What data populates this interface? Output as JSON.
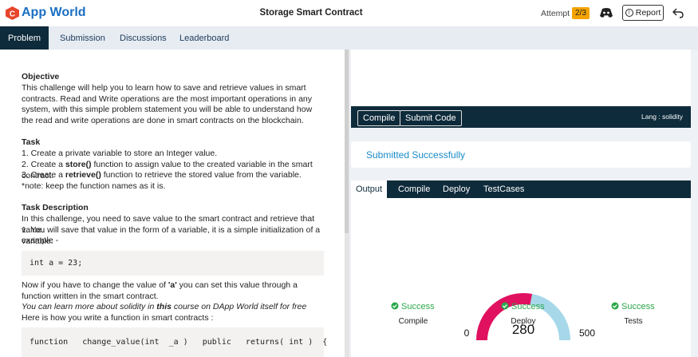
{
  "header": {
    "brand": "App World",
    "title": "Storage Smart Contract",
    "attempt_label": "Attempt :",
    "attempt": "2/3",
    "report": "Report"
  },
  "nav": [
    "Problem",
    "Submission",
    "Discussions",
    "Leaderboard"
  ],
  "problem": {
    "objective_heading": "Objective",
    "objective": "This challenge will help you to learn how to save and retrieve values in smart contracts. Read and Write operations are the most important operations in any system, with this simple problem statement you will be able to understand how the read and write operations are done in smart contracts on the blockchain.",
    "task_heading": "Task",
    "tasks": [
      [
        "1. Create a private variable to store an Integer value."
      ],
      [
        "2. Create a ",
        "store()",
        " function to assign value to the created variable in the smart contract."
      ],
      [
        "3. Create a ",
        "retrieve()",
        " function to retrieve the stored value from the variable."
      ],
      [
        "*note: keep the function names as it is."
      ]
    ],
    "desc_heading": "Task Description",
    "desc": [
      "In this challenge, you need to save value to the smart contract and retrieve that value.",
      "1. You will save that value in the form of a variable, it is a simple initialization of a variable.",
      "example -"
    ],
    "code1": "int a = 23;",
    "change": [
      "Now if you have to change the value of ",
      "'a'",
      " you can set this value through a function written in the smart contract."
    ],
    "learn": [
      "You can learn more about solidity in ",
      "this",
      " course on DApp World itself for free"
    ],
    "here": "Here is how you write a function in smart contracts :",
    "code2": "function   change_value(int  _a )   public   returns( int )  {"
  },
  "editor": {
    "compile": "Compile",
    "submit": "Submit Code",
    "lang": "Lang : solidity"
  },
  "status": "Submitted Successfully",
  "output_tabs": [
    "Output",
    "Compile",
    "Deploy",
    "TestCases"
  ],
  "gauge": {
    "min": 0,
    "max": 500,
    "value": 280
  },
  "results": [
    {
      "status": "Success",
      "label": "Compile"
    },
    {
      "status": "Success",
      "label": "Deploy"
    },
    {
      "status": "Success",
      "label": "Tests"
    }
  ]
}
